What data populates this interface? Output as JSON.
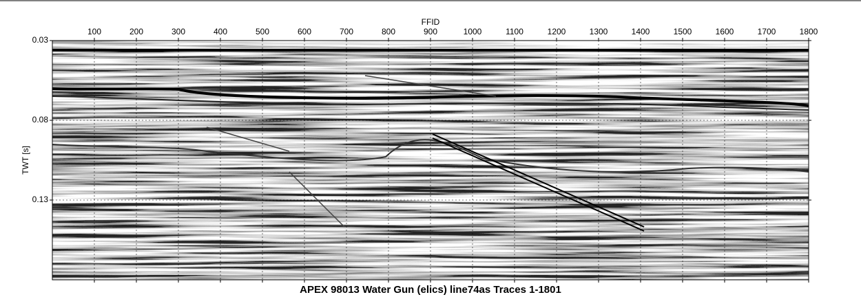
{
  "chart_data": {
    "type": "seismic",
    "title": "APEX 98013 Water Gun (elics) line74as Traces 1-1801",
    "xlabel": "FFID",
    "ylabel": "TWT [s]",
    "xlim": [
      0,
      1800
    ],
    "ylim": [
      0.03,
      0.18
    ],
    "xticks": [
      100,
      200,
      300,
      400,
      500,
      600,
      700,
      800,
      900,
      1000,
      1100,
      1200,
      1300,
      1400,
      1500,
      1600,
      1700,
      1800
    ],
    "yticks": [
      0.03,
      0.08,
      0.13
    ],
    "y_inverted": true,
    "grid": true
  }
}
